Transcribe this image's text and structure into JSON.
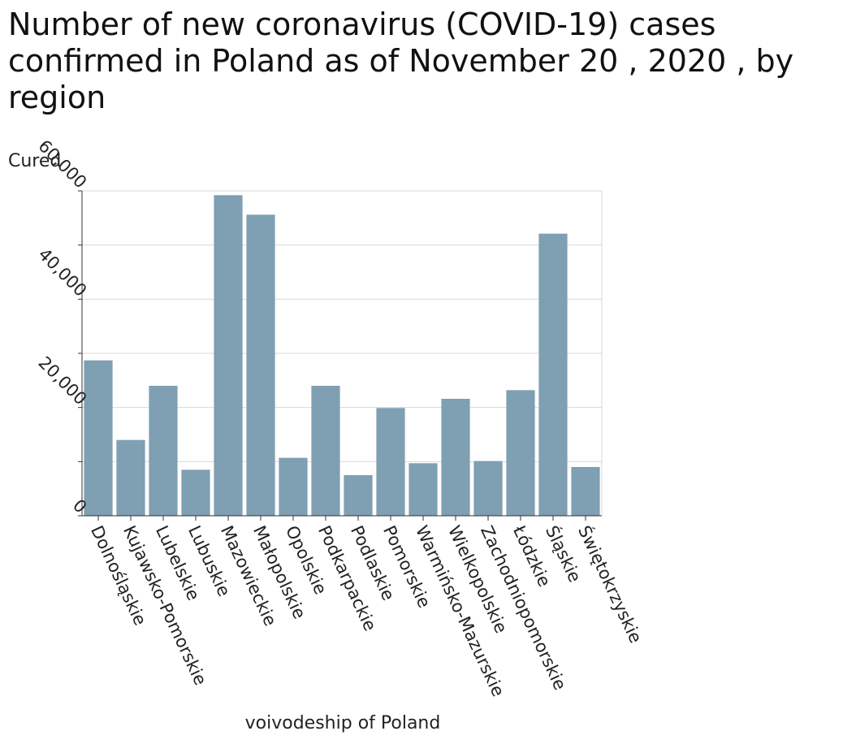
{
  "chart_data": {
    "type": "bar",
    "title": "Number of new coronavirus (COVID-19) cases confirmed in Poland as of November 20 , 2020 , by region",
    "ylabel": "Cured",
    "xlabel": "voivodeship of Poland",
    "ylim": [
      0,
      60000
    ],
    "yticks": [
      0,
      20000,
      40000,
      60000
    ],
    "ytick_labels": [
      "0",
      "20,000",
      "40,000",
      "60,000"
    ],
    "grid": true,
    "bar_color": "#7f9fb2",
    "categories": [
      "Dolnośląskie",
      "Kujawsko-Pomorskie",
      "Lubelskie",
      "Lubuskie",
      "Mazowieckie",
      "Małopolskie",
      "Opolskie",
      "Podkarpackie",
      "Podlaskie",
      "Pomorskie",
      "Warmińsko-Mazurskie",
      "Wielkopolskie",
      "Zachodniopomorskie",
      "Łódzkie",
      "Śląskie",
      "Świętokrzyskie"
    ],
    "values": [
      28700,
      14000,
      24000,
      8500,
      59200,
      55600,
      10700,
      24000,
      7500,
      19900,
      9700,
      21600,
      10100,
      23200,
      52100,
      9000
    ]
  }
}
